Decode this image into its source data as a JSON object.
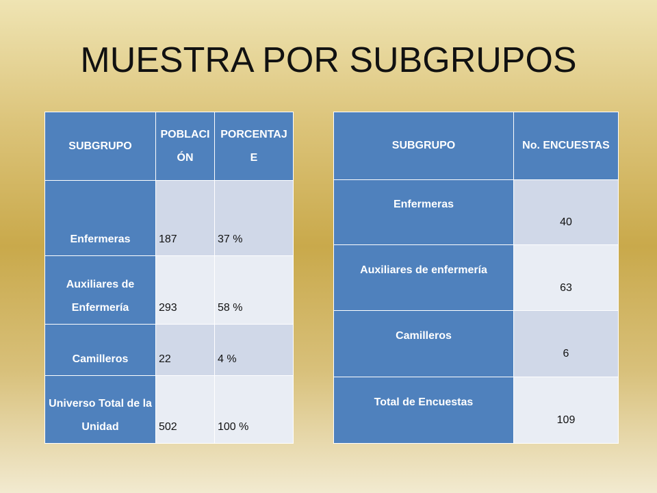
{
  "title": "MUESTRA POR SUBGRUPOS",
  "table1": {
    "header": [
      "SUBGRUPO",
      "POBLACIÓN",
      "PORCENTAJE"
    ],
    "rows": [
      [
        "Enfermeras",
        187,
        "37 %"
      ],
      [
        "Auxiliares de Enfermería",
        293,
        "58 %"
      ],
      [
        "Camilleros",
        22,
        "4 %"
      ],
      [
        "Universo Total de la Unidad",
        502,
        "100 %"
      ]
    ]
  },
  "table2": {
    "header": [
      "SUBGRUPO",
      "No. ENCUESTAS"
    ],
    "rows": [
      [
        "Enfermeras",
        40
      ],
      [
        "Auxiliares de enfermería",
        63
      ],
      [
        "Camilleros",
        6
      ],
      [
        "Total de Encuestas",
        109
      ]
    ]
  }
}
